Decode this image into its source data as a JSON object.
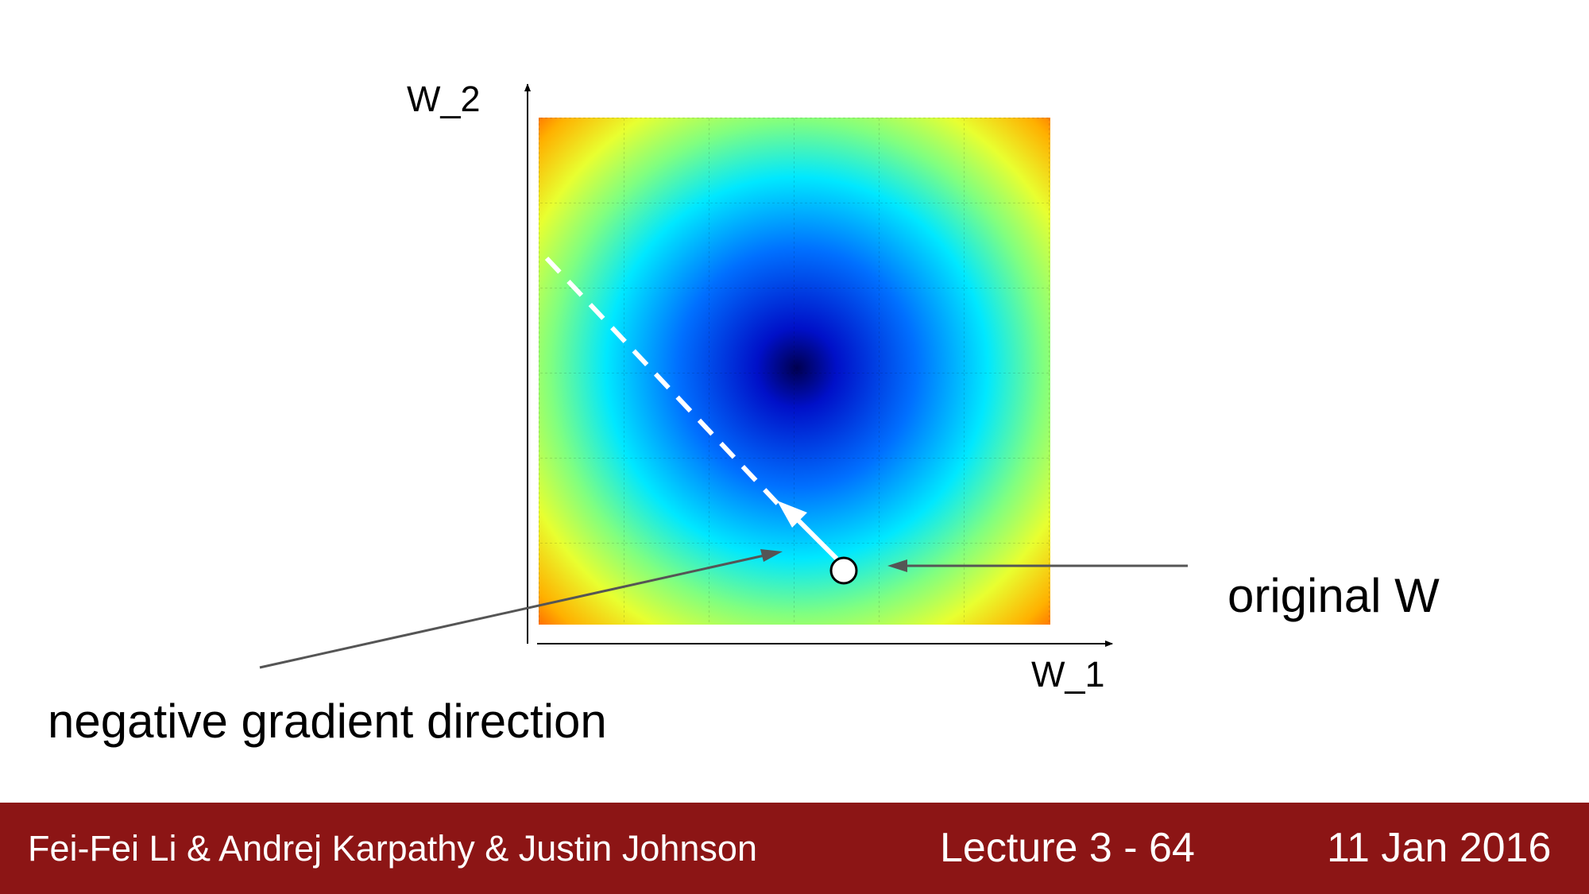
{
  "diagram": {
    "axis_x_label": "W_1",
    "axis_y_label": "W_2",
    "original_w_label": "original W",
    "gradient_label": "negative gradient direction",
    "colors": {
      "axis": "#000000",
      "callout_arrow": "#555555",
      "step_arrow": "#ffffff",
      "heatmap": [
        "#000050",
        "#0000ff",
        "#00ffff",
        "#ffff00",
        "#ff0000"
      ]
    }
  },
  "footer": {
    "authors": "Fei-Fei Li & Andrej Karpathy & Justin Johnson",
    "lecture": "Lecture 3 - 64",
    "date": "11 Jan 2016",
    "background": "#8c1515"
  }
}
